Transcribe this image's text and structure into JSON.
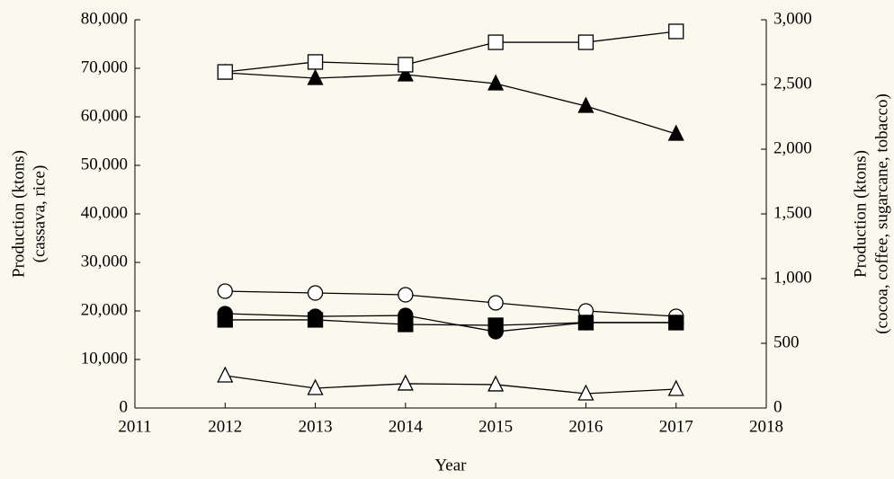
{
  "chart_data": {
    "type": "line",
    "x": [
      2012,
      2013,
      2014,
      2015,
      2016,
      2017
    ],
    "xlabel": "Year",
    "ylabel": [
      "Production (ktons)",
      "(cassava, rice)"
    ],
    "y2label": [
      "Production (ktons)",
      "(cocoa, coffee, sugarcane, tobacco)"
    ],
    "xlim": [
      2011,
      2018
    ],
    "xticks": [
      2011,
      2012,
      2013,
      2014,
      2015,
      2016,
      2017,
      2018
    ],
    "ylim": [
      0,
      80000
    ],
    "yticks": [
      0,
      {
        "value": 10000,
        "label": "10,000"
      },
      {
        "value": 20000,
        "label": "20,000"
      },
      {
        "value": 30000,
        "label": "30,000"
      },
      {
        "value": 40000,
        "label": "40,000"
      },
      {
        "value": 50000,
        "label": "50,000"
      },
      {
        "value": 60000,
        "label": "60,000"
      },
      {
        "value": 70000,
        "label": "70,000"
      },
      {
        "value": 80000,
        "label": "80,000"
      }
    ],
    "y2lim": [
      0,
      3000
    ],
    "y2ticks": [
      0,
      500,
      {
        "value": 1000,
        "label": "1,000"
      },
      {
        "value": 1500,
        "label": "1,500"
      },
      {
        "value": 2000,
        "label": "2,000"
      },
      {
        "value": 2500,
        "label": "2,500"
      },
      {
        "value": 3000,
        "label": "3,000"
      }
    ],
    "series": [
      {
        "color": "#000000",
        "marker": "triangle",
        "filled": true,
        "axis": "y",
        "values": [
          69070,
          67960,
          68700,
          66850,
          62220,
          56480
        ]
      },
      {
        "color": "#000000",
        "marker": "circle",
        "filled": false,
        "axis": "y",
        "values": [
          24070,
          23700,
          23330,
          21670,
          20000,
          18890
        ]
      },
      {
        "color": "#000000",
        "marker": "square",
        "filled": false,
        "axis": "y2",
        "values": [
          2597,
          2674,
          2653,
          2826,
          2826,
          2910
        ]
      },
      {
        "color": "#000000",
        "marker": "circle",
        "filled": true,
        "axis": "y2",
        "values": [
          729,
          708,
          715,
          590,
          660,
          660
        ]
      },
      {
        "color": "#000000",
        "marker": "square",
        "filled": true,
        "axis": "y2",
        "values": [
          681,
          681,
          646,
          639,
          660,
          660
        ]
      },
      {
        "color": "#000000",
        "marker": "triangle",
        "filled": false,
        "axis": "y2",
        "values": [
          250,
          153,
          188,
          181,
          111,
          146
        ]
      }
    ]
  }
}
